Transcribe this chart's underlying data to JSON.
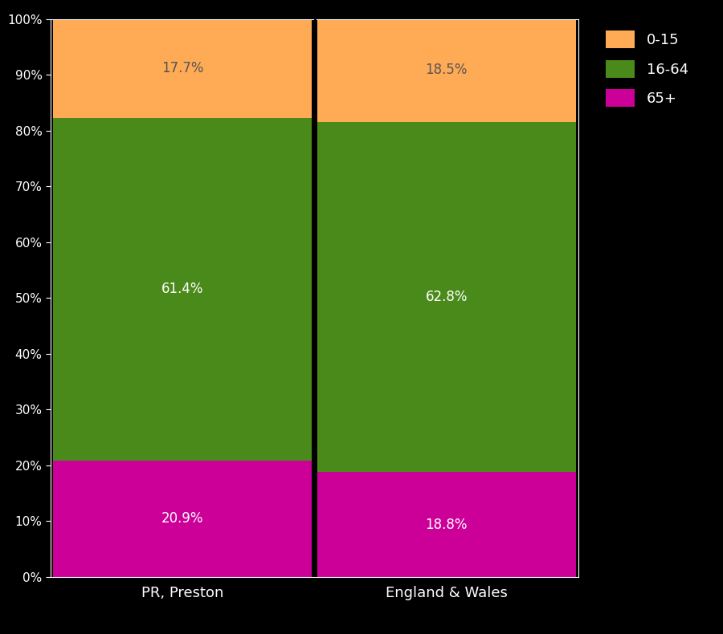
{
  "categories": [
    "PR, Preston",
    "England & Wales"
  ],
  "segments": {
    "65+": [
      20.9,
      18.8
    ],
    "16-64": [
      61.4,
      62.8
    ],
    "0-15": [
      17.7,
      18.5
    ]
  },
  "colors": {
    "65+": "#CC0099",
    "16-64": "#4A8A1A",
    "0-15": "#FFAA55"
  },
  "label_colors": {
    "65+": "white",
    "16-64": "white",
    "0-15": "#555555"
  },
  "background_color": "#000000",
  "axes_bg_color": "#000000",
  "text_color": "#ffffff",
  "bar_width": 0.98,
  "ylim": [
    0,
    100
  ],
  "yticks": [
    0,
    10,
    20,
    30,
    40,
    50,
    60,
    70,
    80,
    90,
    100
  ],
  "ytick_labels": [
    "0%",
    "10%",
    "20%",
    "30%",
    "40%",
    "50%",
    "60%",
    "70%",
    "80%",
    "90%",
    "100%"
  ],
  "legend_labels": [
    "0-15",
    "16-64",
    "65+"
  ]
}
